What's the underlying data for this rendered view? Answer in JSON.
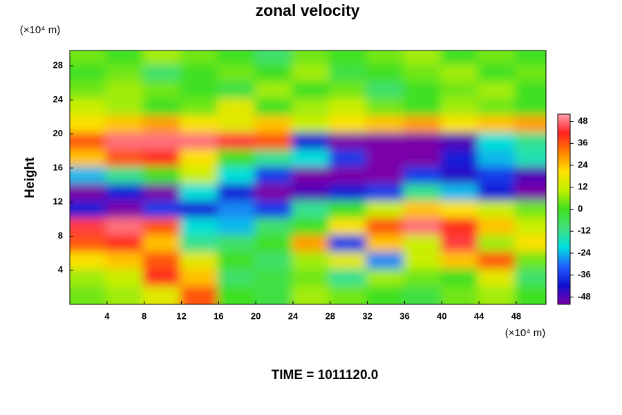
{
  "chart_data": {
    "type": "heatmap",
    "title": "zonal velocity",
    "y_label": "Height",
    "y_unit": "(×10⁴ m)",
    "x_unit": "(×10⁴ m)",
    "footer": "TIME = 1011120.0",
    "x": [
      2,
      6,
      10,
      14,
      18,
      22,
      26,
      30,
      34,
      38,
      42,
      46,
      50
    ],
    "y": [
      29,
      27,
      25,
      23,
      21,
      19,
      17,
      15,
      13,
      11,
      9,
      7,
      5,
      3,
      1
    ],
    "z": [
      [
        4,
        0,
        8,
        4,
        0,
        -8,
        4,
        0,
        4,
        8,
        0,
        4,
        0
      ],
      [
        0,
        4,
        -8,
        0,
        4,
        0,
        8,
        -4,
        0,
        4,
        8,
        0,
        4
      ],
      [
        4,
        8,
        4,
        0,
        -4,
        8,
        0,
        4,
        -8,
        0,
        4,
        8,
        0
      ],
      [
        12,
        8,
        0,
        4,
        16,
        0,
        8,
        12,
        4,
        0,
        8,
        4,
        0
      ],
      [
        20,
        24,
        28,
        20,
        16,
        24,
        12,
        20,
        24,
        28,
        20,
        24,
        28
      ],
      [
        36,
        48,
        48,
        48,
        44,
        36,
        -40,
        -52,
        -52,
        -52,
        -48,
        -20,
        -12
      ],
      [
        24,
        36,
        40,
        20,
        0,
        -12,
        -20,
        -36,
        -52,
        -52,
        -40,
        -24,
        -16
      ],
      [
        -24,
        -12,
        0,
        12,
        -20,
        -36,
        -52,
        -52,
        -52,
        -36,
        -44,
        -36,
        -48
      ],
      [
        -52,
        -40,
        -52,
        -20,
        -40,
        -52,
        -48,
        -40,
        -36,
        -12,
        -24,
        -40,
        -52
      ],
      [
        -40,
        -52,
        -36,
        -40,
        -28,
        -36,
        -12,
        0,
        12,
        24,
        20,
        12,
        4
      ],
      [
        44,
        48,
        36,
        -20,
        -24,
        -8,
        0,
        20,
        36,
        48,
        40,
        24,
        12
      ],
      [
        36,
        40,
        24,
        -12,
        -8,
        0,
        28,
        -36,
        24,
        12,
        44,
        8,
        20
      ],
      [
        20,
        24,
        36,
        16,
        0,
        -8,
        8,
        16,
        -28,
        12,
        24,
        36,
        4
      ],
      [
        8,
        12,
        40,
        24,
        -8,
        -4,
        4,
        -12,
        8,
        4,
        0,
        16,
        -8
      ],
      [
        4,
        8,
        16,
        36,
        0,
        -4,
        8,
        4,
        0,
        -4,
        4,
        8,
        0
      ]
    ],
    "xlim": [
      0,
      51.2
    ],
    "ylim": [
      0,
      29.8
    ],
    "xticks": [
      4,
      8,
      12,
      16,
      20,
      24,
      28,
      32,
      36,
      40,
      44,
      48
    ],
    "yticks": [
      4,
      8,
      12,
      16,
      20,
      24,
      28
    ],
    "zlim": [
      -52,
      52
    ],
    "zticks": [
      -48,
      -36,
      -24,
      -12,
      0,
      12,
      24,
      36,
      48
    ],
    "colormap": [
      "#7a00a8",
      "#1010d0",
      "#2060ff",
      "#00e0e0",
      "#40e080",
      "#40e020",
      "#c0f000",
      "#ffe000",
      "#ff8000",
      "#ff2020",
      "#ffa0b0"
    ]
  }
}
